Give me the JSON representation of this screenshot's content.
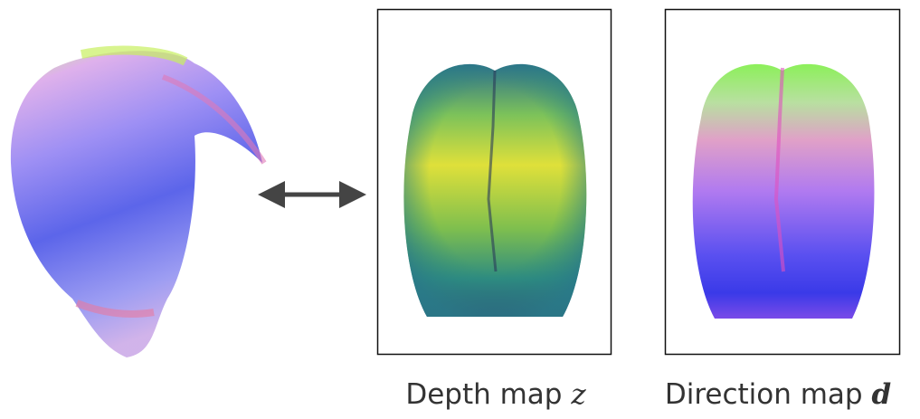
{
  "captions": [
    {
      "label": "Depth map",
      "symbol": "z"
    },
    {
      "label": "Direction map",
      "symbol": "d"
    }
  ]
}
